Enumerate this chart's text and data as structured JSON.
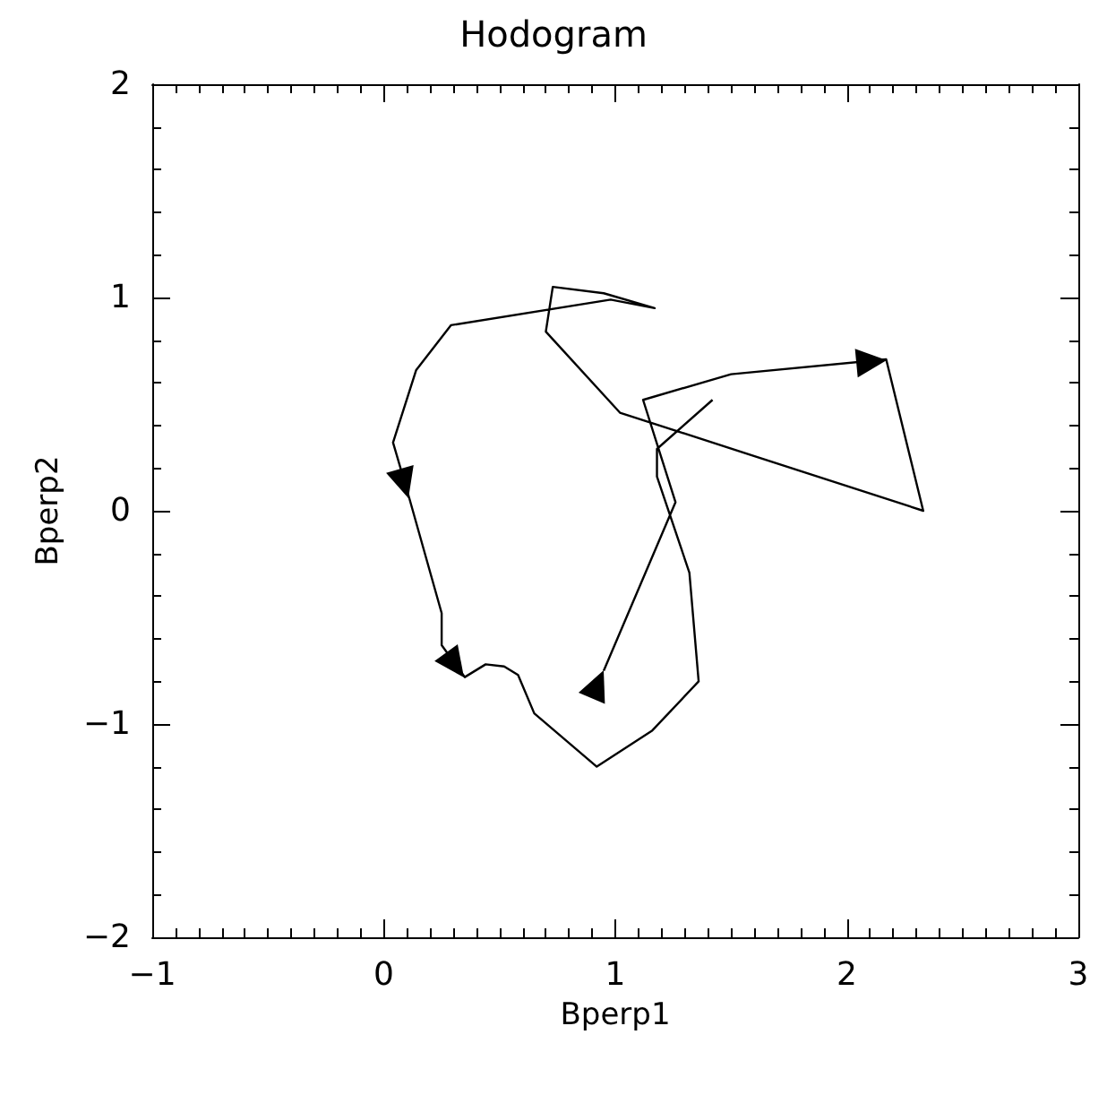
{
  "chart_data": {
    "type": "line",
    "title": "Hodogram",
    "xlabel": "Bperp1",
    "ylabel": "Bperp2",
    "x": [
      0.95,
      1.26,
      1.12,
      1.5,
      2.17,
      2.33,
      1.02,
      0.7,
      0.73,
      0.95,
      1.17,
      0.98,
      0.29,
      0.14,
      0.04,
      0.11,
      0.25,
      0.25,
      0.35,
      0.44,
      0.52,
      0.58,
      0.65,
      0.92,
      1.16,
      1.36,
      1.32,
      1.18,
      1.18,
      1.42
    ],
    "values": [
      -0.75,
      0.04,
      0.52,
      0.64,
      0.71,
      0.0,
      0.46,
      0.84,
      1.05,
      1.02,
      0.95,
      0.99,
      0.87,
      0.66,
      0.32,
      0.06,
      -0.48,
      -0.63,
      -0.78,
      -0.72,
      -0.73,
      -0.77,
      -0.95,
      -1.2,
      -1.03,
      -0.8,
      -0.29,
      0.16,
      0.29,
      0.52
    ],
    "color": "#000000",
    "marker": "none",
    "line_style": "solid",
    "grid": false,
    "xlim": [
      -1,
      3
    ],
    "xticks": [
      -1,
      0,
      1,
      2,
      3
    ],
    "ylim": [
      -2,
      2
    ],
    "yticks": [
      -2,
      -1,
      0,
      1,
      2
    ]
  }
}
